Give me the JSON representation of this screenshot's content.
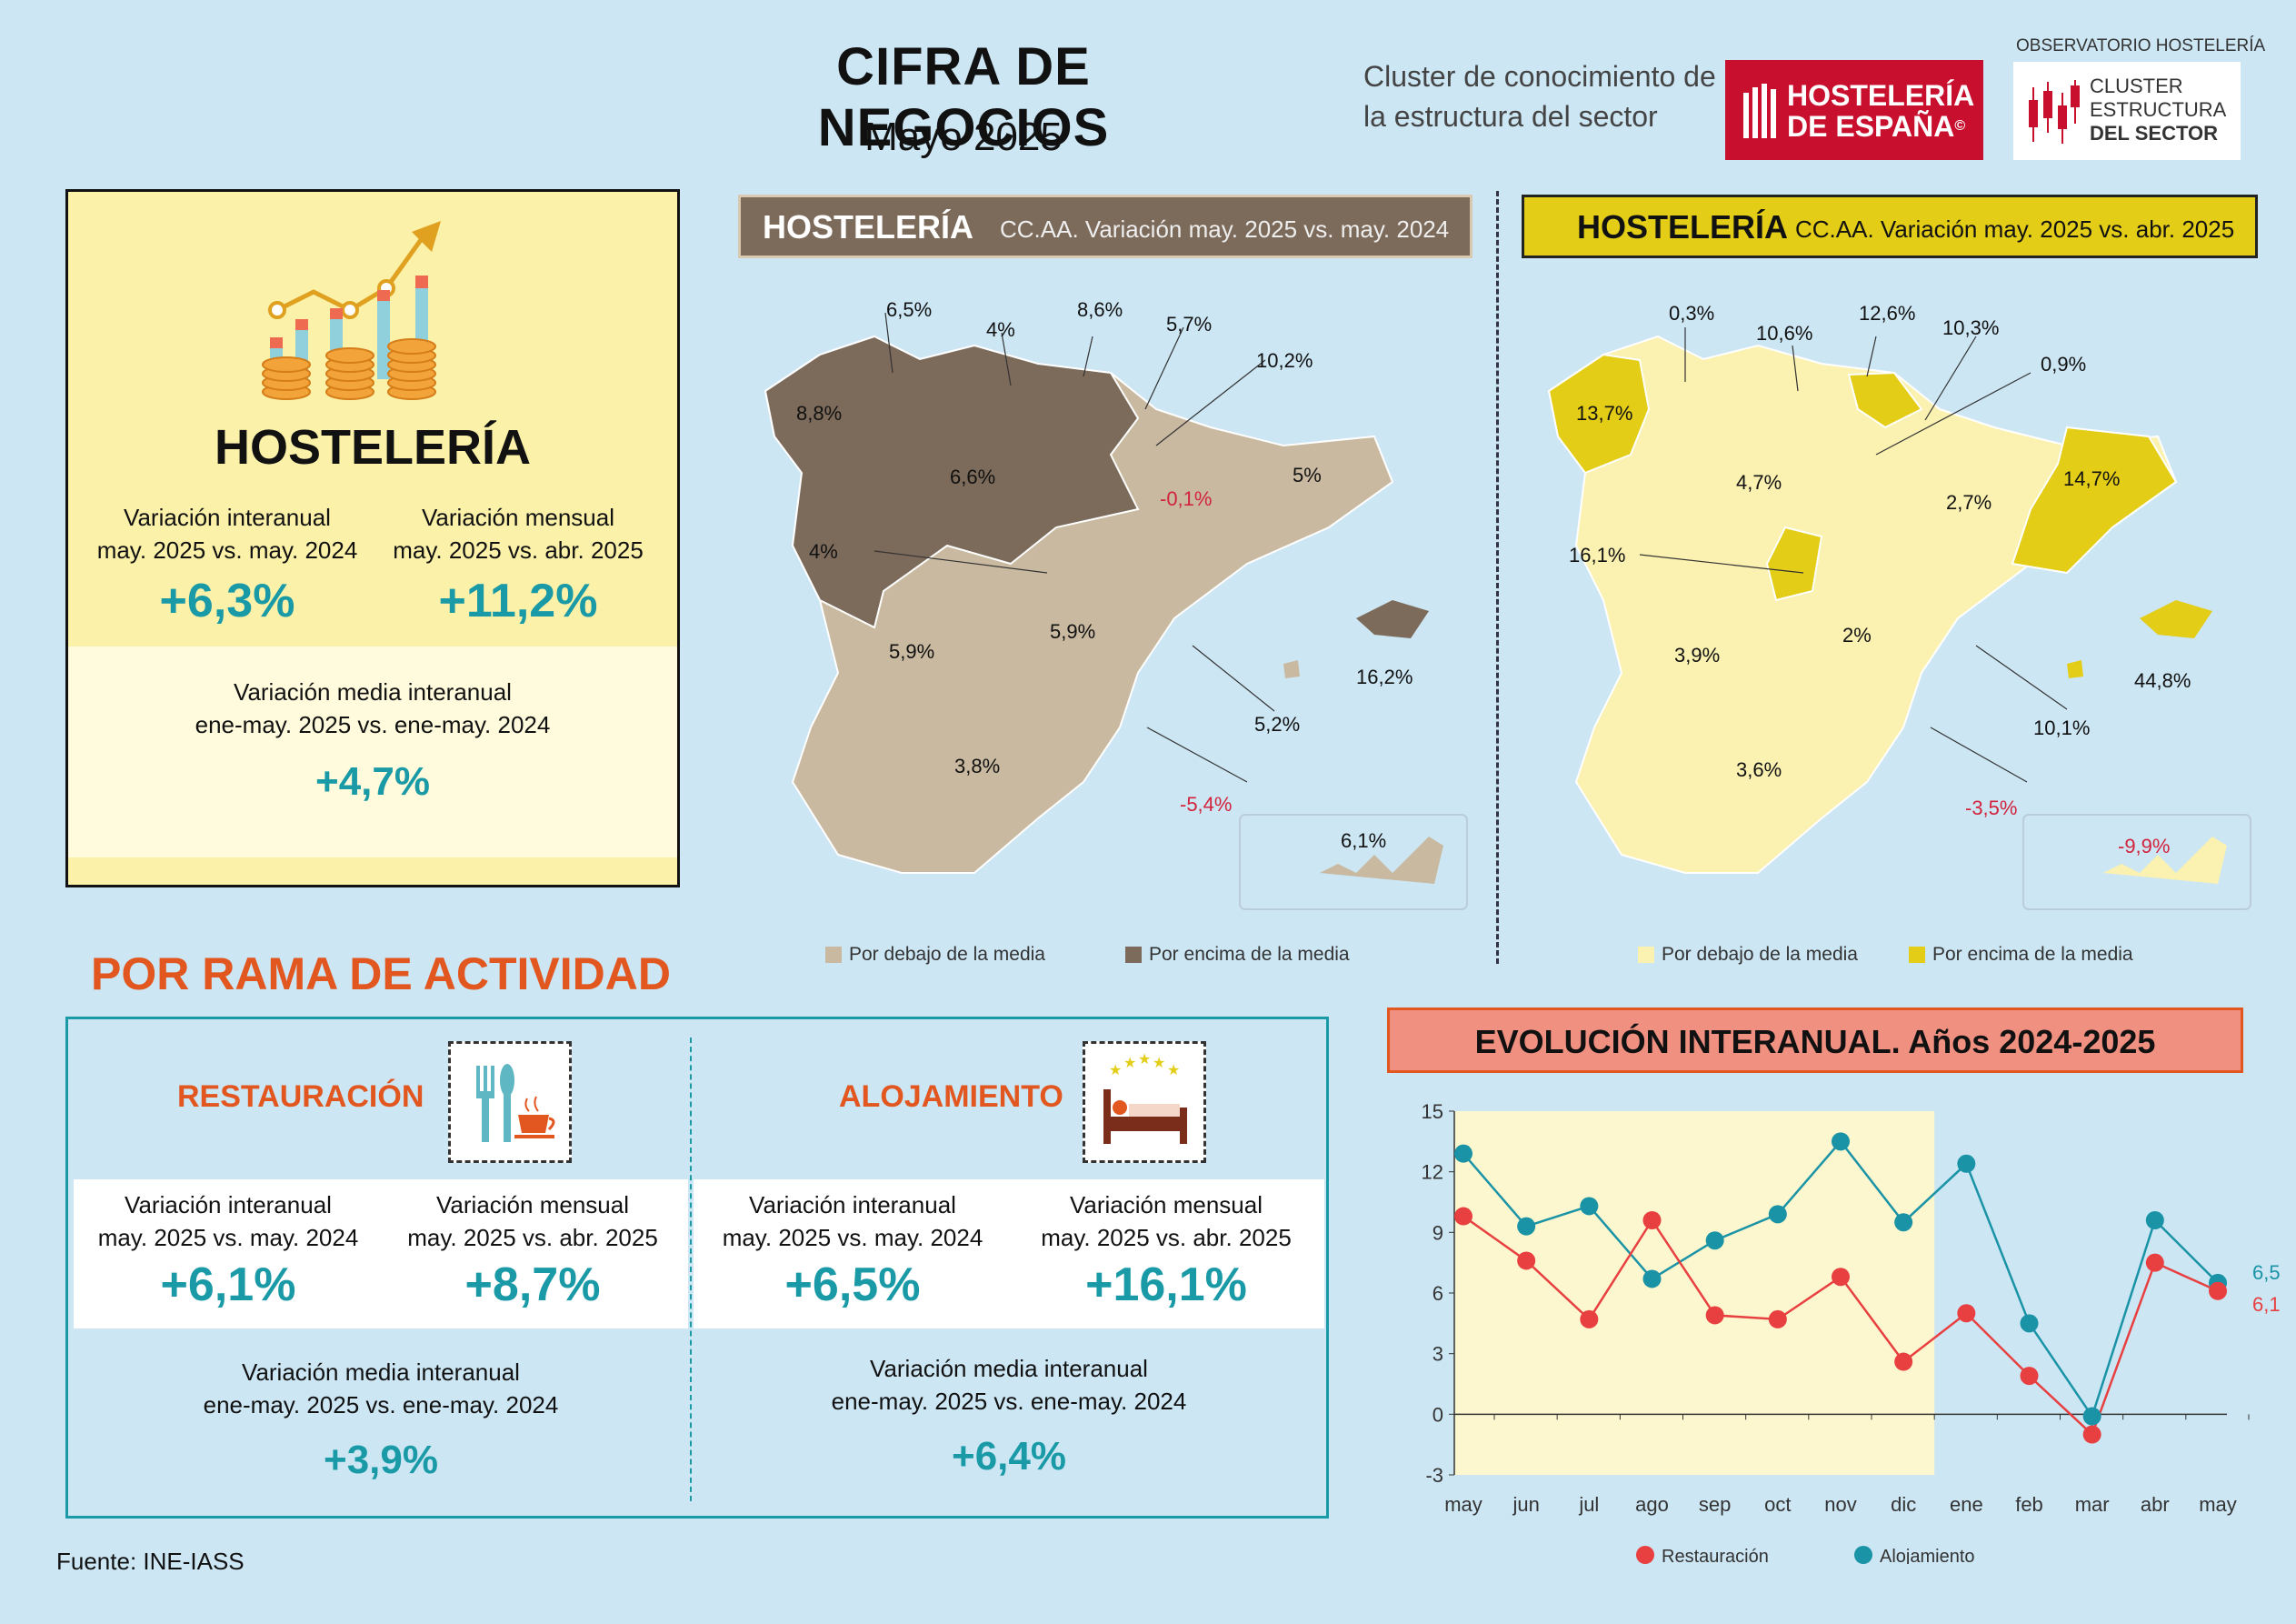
{
  "header": {
    "title": "CIFRA DE NEGOCIOS",
    "subtitle": "Mayo 2025",
    "cluster_line1": "Cluster de conocimiento de",
    "cluster_line2": "la estructura del sector",
    "logo_he_line1": "HOSTELERÍA",
    "logo_he_line2": "DE ESPAÑA",
    "logo_mark": "©",
    "obs_label": "OBSERVATORIO HOSTELERÍA",
    "logo_cl_line1": "CLUSTER",
    "logo_cl_line2": "ESTRUCTURA",
    "logo_cl_line3": "DEL SECTOR"
  },
  "hosteleria": {
    "title": "HOSTELERÍA",
    "interanual_label1": "Variación interanual",
    "interanual_label2": "may. 2025 vs. may. 2024",
    "interanual_value": "+6,3%",
    "mensual_label1": "Variación mensual",
    "mensual_label2": "may. 2025 vs. abr. 2025",
    "mensual_value": "+11,2%",
    "media_label1": "Variación media interanual",
    "media_label2": "ene-may. 2025 vs. ene-may. 2024",
    "media_value": "+4,7%"
  },
  "map_left": {
    "tag": "HOSTELERÍA",
    "header": "CC.AA. Variación may. 2025 vs. may. 2024",
    "labels": [
      "6,5%",
      "4%",
      "8,6%",
      "5,7%",
      "10,2%",
      "8,8%",
      "6,6%",
      "-0,1%",
      "5%",
      "4%",
      "5,9%",
      "5,9%",
      "16,2%",
      "5,2%",
      "3,8%",
      "-5,4%",
      "6,1%"
    ],
    "legend_below": "Por debajo de la media",
    "legend_above": "Por encima de la media",
    "color_below": "#c9b9a0",
    "color_above": "#7c6a5a"
  },
  "map_right": {
    "tag": "HOSTELERÍA",
    "header": "CC.AA. Variación may. 2025 vs. abr. 2025",
    "labels": [
      "0,3%",
      "10,6%",
      "12,6%",
      "10,3%",
      "0,9%",
      "13,7%",
      "4,7%",
      "2,7%",
      "14,7%",
      "16,1%",
      "3,9%",
      "2%",
      "44,8%",
      "10,1%",
      "3,6%",
      "-3,5%",
      "-9,9%"
    ],
    "legend_below": "Por debajo de la media",
    "legend_above": "Por encima de la media",
    "color_below": "#fbf1b0",
    "color_above": "#e3cd17"
  },
  "rama": {
    "title": "POR RAMA DE ACTIVIDAD",
    "rest": {
      "name": "RESTAURACIÓN",
      "interanual_label1": "Variación interanual",
      "interanual_label2": "may. 2025 vs. may. 2024",
      "interanual_value": "+6,1%",
      "mensual_label1": "Variación mensual",
      "mensual_label2": "may. 2025 vs. abr. 2025",
      "mensual_value": "+8,7%",
      "media_label1": "Variación media interanual",
      "media_label2": "ene-may. 2025 vs. ene-may. 2024",
      "media_value": "+3,9%"
    },
    "aloj": {
      "name": "ALOJAMIENTO",
      "interanual_label1": "Variación interanual",
      "interanual_label2": "may. 2025 vs. may. 2024",
      "interanual_value": "+6,5%",
      "mensual_label1": "Variación mensual",
      "mensual_label2": "may. 2025 vs. abr. 2025",
      "mensual_value": "+16,1%",
      "media_label1": "Variación media interanual",
      "media_label2": "ene-may. 2025 vs. ene-may. 2024",
      "media_value": "+6,4%"
    }
  },
  "source": "Fuente: INE-IASS",
  "chart_data": {
    "type": "line",
    "title": "EVOLUCIÓN INTERANUAL. Años 2024-2025",
    "categories": [
      "may",
      "jun",
      "jul",
      "ago",
      "sep",
      "oct",
      "nov",
      "dic",
      "ene",
      "feb",
      "mar",
      "abr",
      "may"
    ],
    "series": [
      {
        "name": "Restauración",
        "color": "#e84040",
        "values": [
          9.8,
          7.6,
          4.7,
          9.6,
          4.9,
          4.7,
          6.8,
          2.6,
          5.0,
          1.9,
          -1.0,
          7.5,
          6.1
        ]
      },
      {
        "name": "Alojamiento",
        "color": "#1a93a6",
        "values": [
          12.9,
          9.3,
          10.3,
          6.7,
          8.6,
          9.9,
          13.5,
          9.5,
          12.4,
          4.5,
          -0.1,
          9.6,
          6.5
        ]
      }
    ],
    "end_labels": [
      "6,5",
      "6,1"
    ],
    "ylim": [
      -3,
      15
    ],
    "yticks": [
      -3,
      0,
      3,
      6,
      9,
      12,
      15
    ],
    "highlight_range": [
      "may",
      "dic"
    ],
    "highlight_color": "#fdf7cf",
    "legend": "bottom"
  }
}
